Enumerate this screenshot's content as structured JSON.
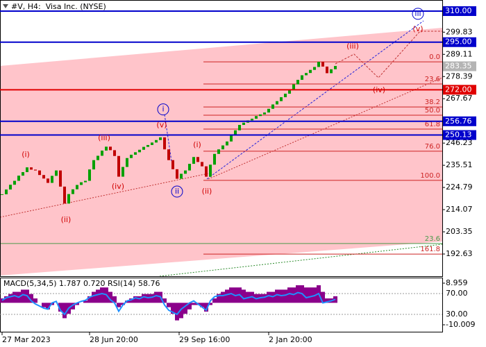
{
  "chart_data": [
    {
      "type": "candlestick",
      "title": "#V, H4:  Visa Inc. (NYSE)",
      "up_color": "#00a000",
      "down_color": "#c00000",
      "values": [
        221.5,
        223.8,
        226.1,
        228.0,
        230.5,
        232.2,
        234.5,
        233.4,
        233.0,
        230.8,
        229.1,
        227.0,
        230.4,
        233.0,
        225.2,
        217.0,
        221.6,
        223.9,
        226.0,
        227.3,
        228.0,
        233.5,
        238.0,
        240.1,
        242.6,
        244.5,
        242.8,
        240.0,
        230.0,
        234.7,
        239.0,
        240.6,
        241.8,
        243.0,
        244.4,
        245.3,
        246.5,
        247.7,
        249.0,
        243.2,
        238.0,
        233.6,
        229.0,
        231.4,
        233.0,
        236.2,
        239.5,
        237.1,
        235.0,
        230.0,
        235.8,
        241.0,
        243.2,
        245.1,
        247.0,
        249.9,
        252.4,
        255.0,
        256.1,
        257.2,
        258.0,
        259.3,
        260.1,
        261.0,
        262.8,
        264.9,
        266.5,
        268.4,
        270.1,
        272.0,
        274.6,
        276.8,
        279.0,
        280.1,
        281.6,
        283.0,
        285.5,
        283.2,
        280.0,
        281.9,
        283.5
      ],
      "xlim": [
        0,
        106
      ],
      "xticks": [
        {
          "value": 0,
          "label": "27 Mar 2023"
        },
        {
          "value": 21,
          "label": "28 Jun 20:00"
        },
        {
          "value": 42.5,
          "label": "29 Sep 16:00"
        },
        {
          "value": 64,
          "label": "2 Jan 20:00"
        }
      ],
      "ylim": [
        181.9,
        315.37
      ],
      "yticks": [
        299.83,
        289.11,
        278.39,
        267.67,
        246.23,
        235.51,
        224.79,
        214.07,
        203.35,
        192.63
      ],
      "levels": [
        {
          "value": 310,
          "label": "310.00",
          "color": "#0000cc",
          "line": true
        },
        {
          "value": 295,
          "label": "295.00",
          "color": "#0000cc",
          "line": true
        },
        {
          "value": 283.35,
          "label": "283.35",
          "color": "#b4b4b4",
          "line": false
        },
        {
          "value": 272,
          "label": "272.00",
          "color": "#e00000",
          "line": true
        },
        {
          "value": 256.76,
          "label": "256.76",
          "color": "#0000cc",
          "line": true
        },
        {
          "value": 250.13,
          "label": "250.13",
          "color": "#0000cc",
          "line": true
        }
      ],
      "fib_levels": [
        {
          "value": 285.5,
          "label": "0.0",
          "color": "#cc2222"
        },
        {
          "value": 274.8,
          "label": "23.6",
          "color": "#cc2222"
        },
        {
          "value": 263.7,
          "label": "38.2",
          "color": "#cc2222"
        },
        {
          "value": 259.7,
          "label": "50.0",
          "color": "#cc2222"
        },
        {
          "value": 253.0,
          "label": "61.8",
          "color": "#cc2222"
        },
        {
          "value": 242.3,
          "label": "76.0",
          "color": "#cc2222"
        },
        {
          "value": 228.2,
          "label": "100.0",
          "color": "#cc2222"
        },
        {
          "value": 197.7,
          "label": "23.6",
          "color": "#4a9a4a"
        },
        {
          "value": 192.6,
          "label": "161.8",
          "color": "#cc2222"
        }
      ],
      "annotations": [
        {
          "text": "(i)",
          "x": 5.67,
          "y": 240.6,
          "color": "#d00000",
          "circled": false
        },
        {
          "text": "(ii)",
          "x": 15.33,
          "y": 209.1,
          "color": "#d00000",
          "circled": false
        },
        {
          "text": "(iii)",
          "x": 24.5,
          "y": 248.6,
          "color": "#d00000",
          "circled": false
        },
        {
          "text": "(iv)",
          "x": 27.83,
          "y": 225.1,
          "color": "#d00000",
          "circled": false
        },
        {
          "text": "(v)",
          "x": 38.33,
          "y": 254.8,
          "color": "#d00000",
          "circled": false
        },
        {
          "text": "i",
          "x": 38.67,
          "y": 262.5,
          "color": "#0000cc",
          "circled": true
        },
        {
          "text": "ii",
          "x": 42,
          "y": 222.8,
          "color": "#0000cc",
          "circled": true
        },
        {
          "text": "(i)",
          "x": 46.83,
          "y": 245.3,
          "color": "#d00000",
          "circled": false
        },
        {
          "text": "(ii)",
          "x": 49.17,
          "y": 222.8,
          "color": "#d00000",
          "circled": false
        },
        {
          "text": "(iii)",
          "x": 84.17,
          "y": 292.9,
          "color": "#d00000",
          "circled": false
        },
        {
          "text": "(iv)",
          "x": 90.5,
          "y": 271.8,
          "color": "#d00000",
          "circled": false
        },
        {
          "text": "(v)",
          "x": 99.83,
          "y": 301.3,
          "color": "#d00000",
          "circled": false
        },
        {
          "text": "iii",
          "x": 99.83,
          "y": 308.7,
          "color": "#0000cc",
          "circled": true
        }
      ]
    },
    {
      "type": "macd",
      "label": "MACD(5,34,5) 1.787 0.720 RSI(14) 58.76",
      "ylim": [
        -10.009,
        8.959
      ],
      "yticks": [
        8.959,
        -10.009
      ],
      "y2lim": [
        10,
        90
      ],
      "y2ticks": [
        {
          "value": 70,
          "label": "70.00"
        },
        {
          "value": 30,
          "label": "30.00"
        }
      ],
      "histogram": {
        "color": "#8b008b",
        "values": [
          2,
          3,
          4,
          5,
          5,
          6,
          6,
          4,
          2,
          0,
          -2,
          -3,
          -1,
          0,
          -4,
          -7,
          -5,
          -3,
          -1,
          0,
          1,
          3,
          5,
          6,
          7,
          7,
          5,
          3,
          -2,
          -1,
          1,
          2,
          3,
          3,
          4,
          4,
          4,
          5,
          5,
          2,
          -2,
          -5,
          -8,
          -7,
          -5,
          -3,
          -1,
          -1,
          -2,
          -4,
          -1,
          2,
          4,
          5,
          6,
          7,
          7,
          7,
          6,
          5,
          5,
          4,
          4,
          4,
          5,
          5,
          6,
          6,
          6,
          7,
          7,
          8,
          8,
          7,
          7,
          7,
          8,
          5,
          2,
          2,
          3
        ]
      },
      "rsi": {
        "color": "#1e90ff",
        "axis": "y2",
        "values": [
          57,
          62,
          64,
          66,
          63,
          68,
          66,
          56,
          50,
          46,
          42,
          40,
          52,
          55,
          38,
          30,
          42,
          48,
          52,
          55,
          57,
          63,
          66,
          68,
          70,
          68,
          58,
          52,
          36,
          48,
          56,
          58,
          62,
          60,
          64,
          62,
          63,
          66,
          64,
          48,
          38,
          34,
          30,
          40,
          46,
          52,
          56,
          50,
          44,
          38,
          56,
          64,
          66,
          66,
          68,
          70,
          66,
          68,
          60,
          62,
          64,
          60,
          62,
          63,
          66,
          64,
          68,
          66,
          67,
          70,
          68,
          72,
          70,
          62,
          64,
          66,
          70,
          52,
          54,
          56,
          59
        ]
      }
    }
  ]
}
